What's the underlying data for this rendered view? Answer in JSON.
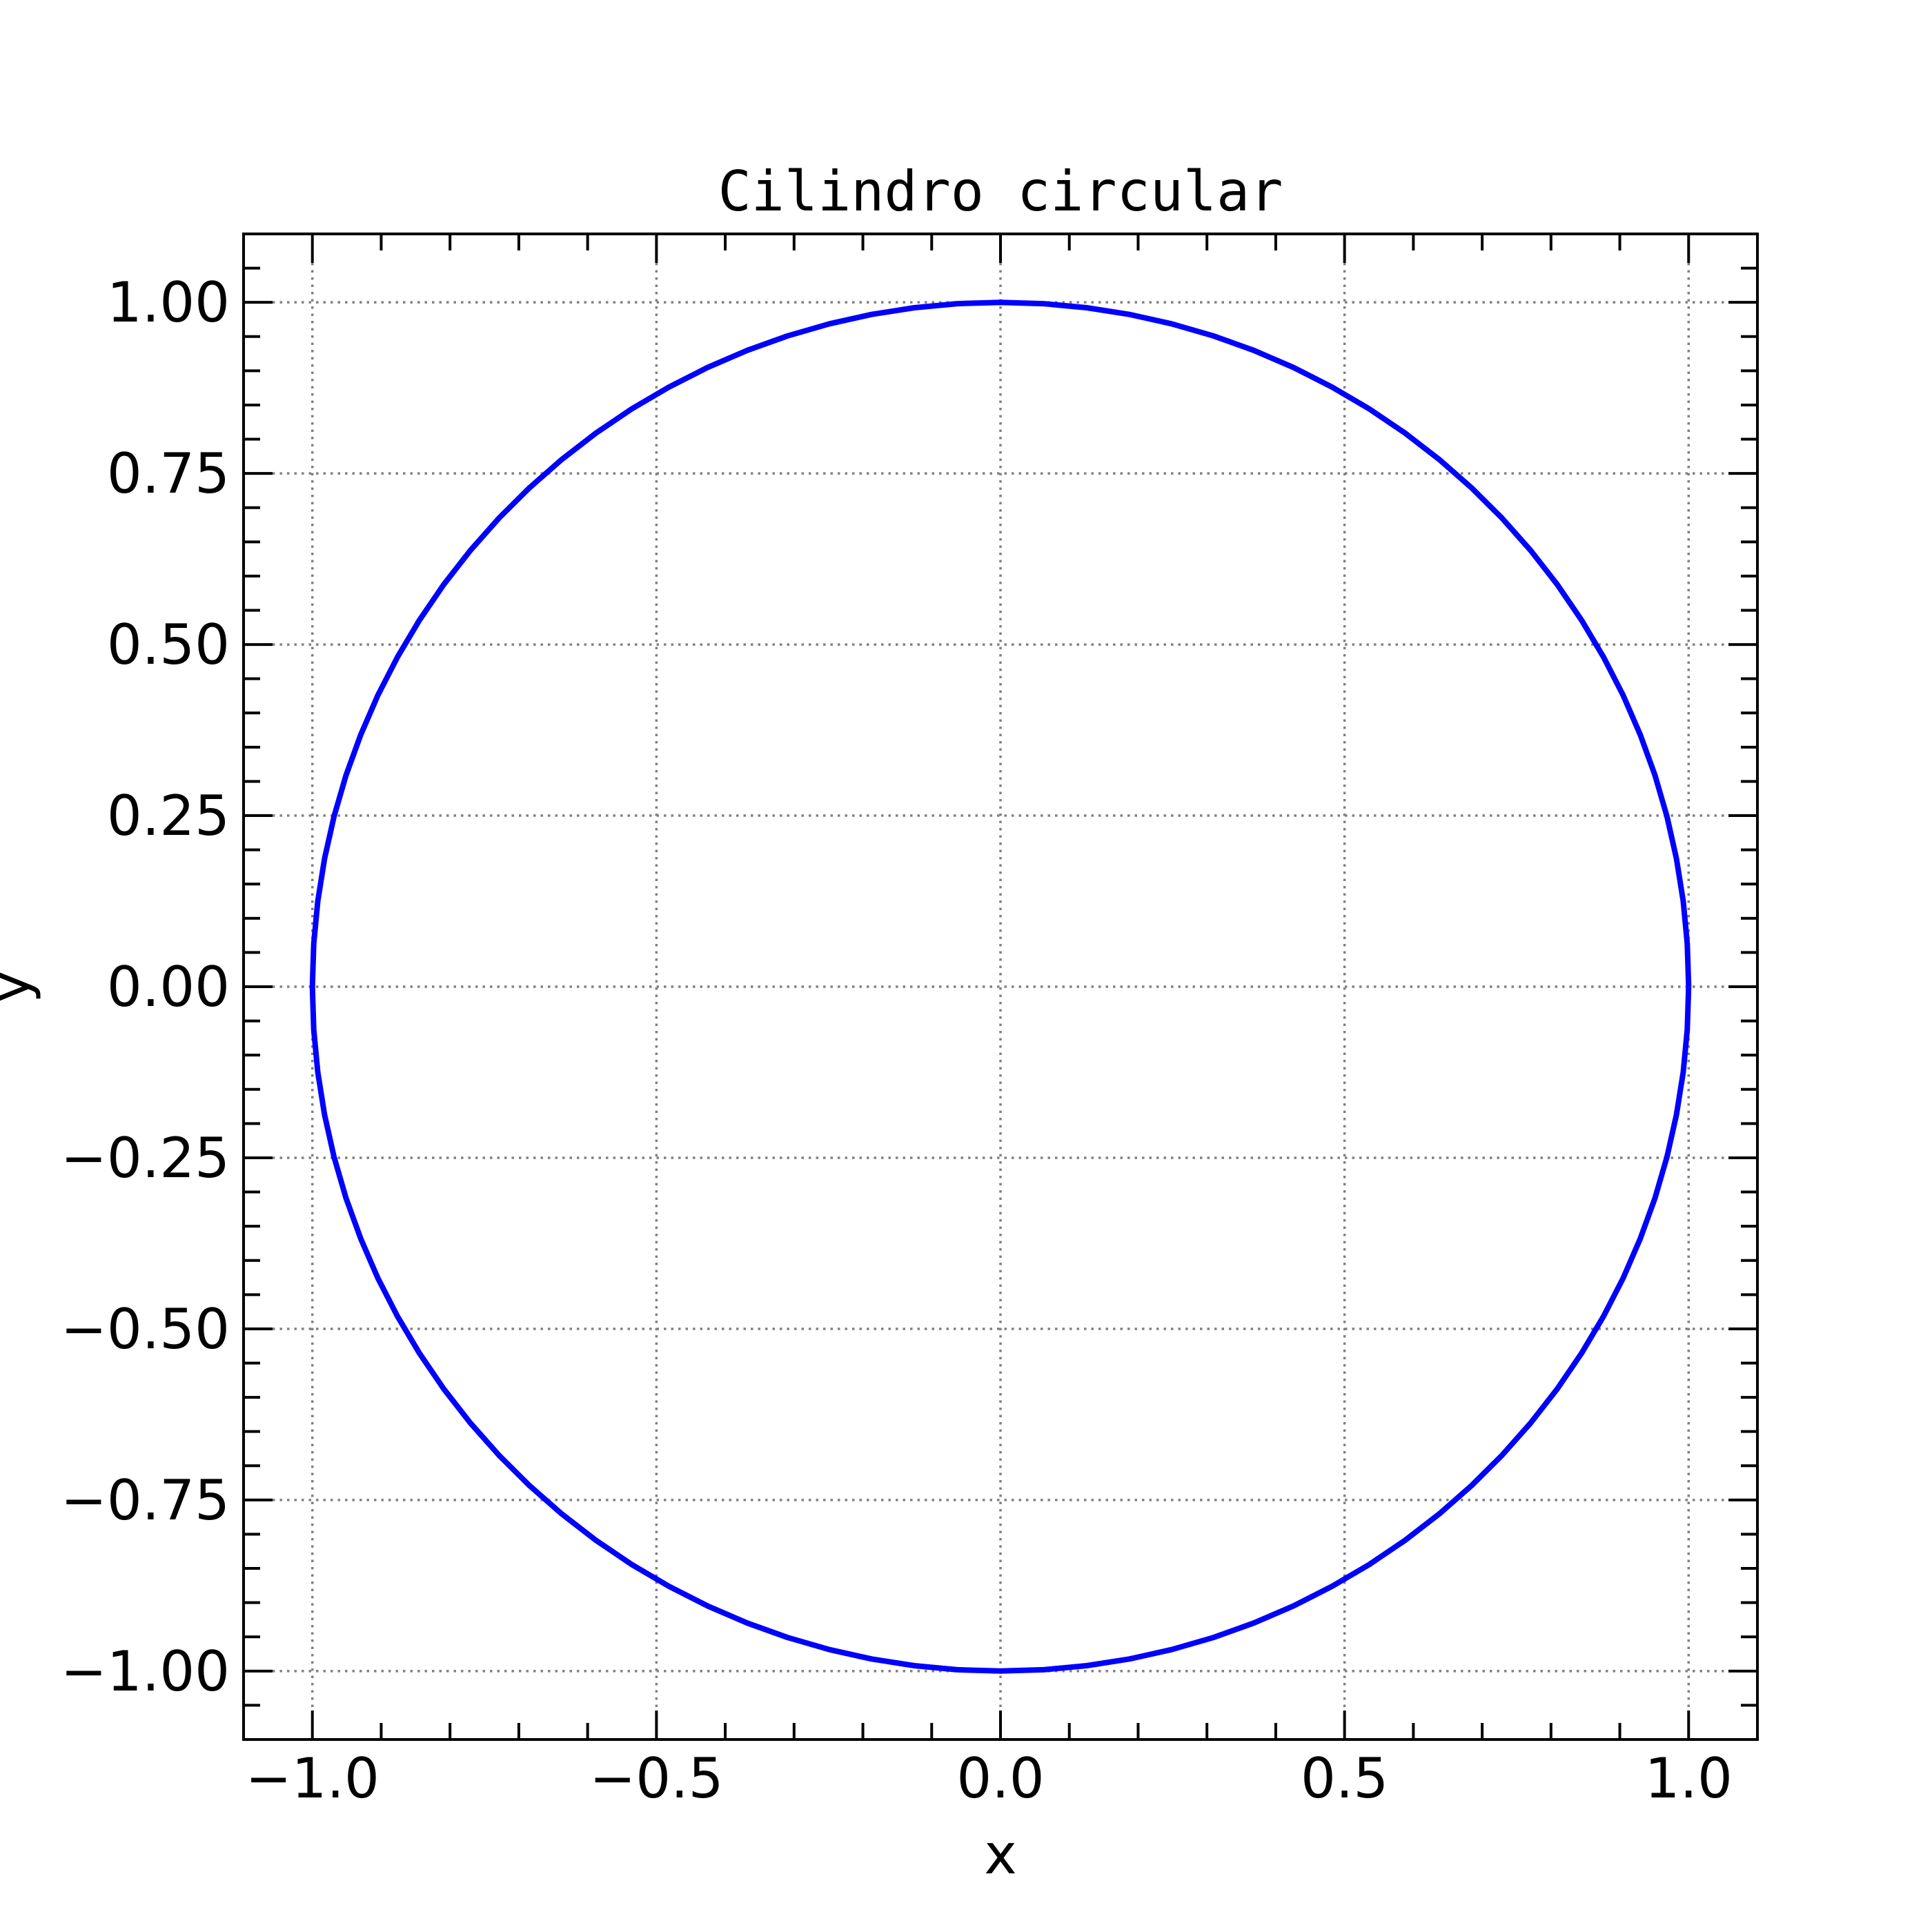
{
  "chart_data": {
    "type": "line",
    "title": "Cilindro circular",
    "xlabel": "x",
    "ylabel": "y",
    "xlim": [
      -1.1,
      1.1
    ],
    "ylim": [
      -1.1,
      1.1
    ],
    "xticks": [
      -1.0,
      -0.5,
      0.0,
      0.5,
      1.0
    ],
    "xtick_labels": [
      "−1.0",
      "−0.5",
      "0.0",
      "0.5",
      "1.0"
    ],
    "yticks": [
      -1.0,
      -0.75,
      -0.5,
      -0.25,
      0.0,
      0.25,
      0.5,
      0.75,
      1.0
    ],
    "ytick_labels": [
      "−1.00",
      "−0.75",
      "−0.50",
      "−0.25",
      "0.00",
      "0.25",
      "0.50",
      "0.75",
      "1.00"
    ],
    "x_minor_step": 0.1,
    "y_minor_step": 0.05,
    "grid": true,
    "tick_direction": "in",
    "ticks_on_all_sides": true,
    "series": [
      {
        "color": "#0000ff",
        "points": 100,
        "equation": "x = cos(t), y = sin(t), t in [0, 2π]"
      }
    ]
  }
}
